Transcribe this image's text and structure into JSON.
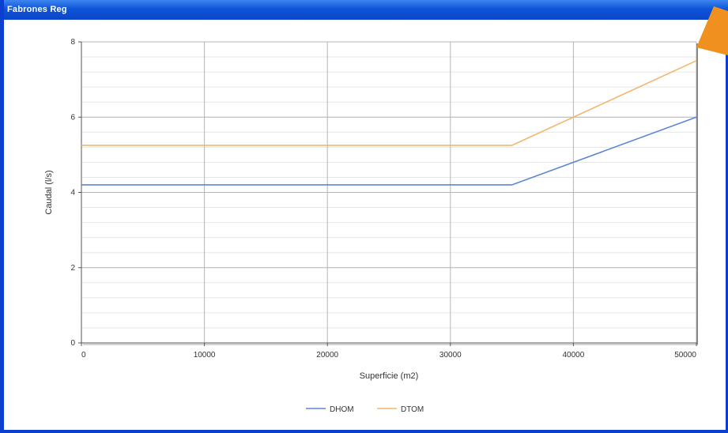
{
  "window": {
    "title": "Fabrones Reg"
  },
  "colors": {
    "titlebar": "#0f55d8",
    "grid_major": "#b5b5b5",
    "grid_minor": "#e6e6e6",
    "series_dhom": "#5b86d6",
    "series_dtom": "#f2b66a",
    "arrow": "#f0901e"
  },
  "cursor": {
    "icon": "orange-arrow-pointer-icon"
  },
  "chart_data": {
    "type": "line",
    "xlabel": "Superficie (m2)",
    "ylabel": "Caudal (l/s)",
    "xlim": [
      0,
      50000
    ],
    "ylim": [
      0,
      8
    ],
    "x_ticks": [
      0,
      10000,
      20000,
      30000,
      40000,
      50000
    ],
    "x_tick_labels": [
      "0",
      "10000",
      "20000",
      "30000",
      "40000",
      "50000"
    ],
    "y_ticks": [
      0,
      2,
      4,
      6,
      8
    ],
    "y_tick_labels": [
      "0",
      "2",
      "4",
      "6",
      "8"
    ],
    "grid": true,
    "legend_position": "bottom-center",
    "series": [
      {
        "name": "DHOM",
        "color": "#5b86d6",
        "x": [
          0,
          35000,
          50000
        ],
        "y": [
          4.2,
          4.2,
          6.0
        ]
      },
      {
        "name": "DTOM",
        "color": "#f2b66a",
        "x": [
          0,
          35000,
          50000
        ],
        "y": [
          5.25,
          5.25,
          7.5
        ]
      }
    ]
  }
}
